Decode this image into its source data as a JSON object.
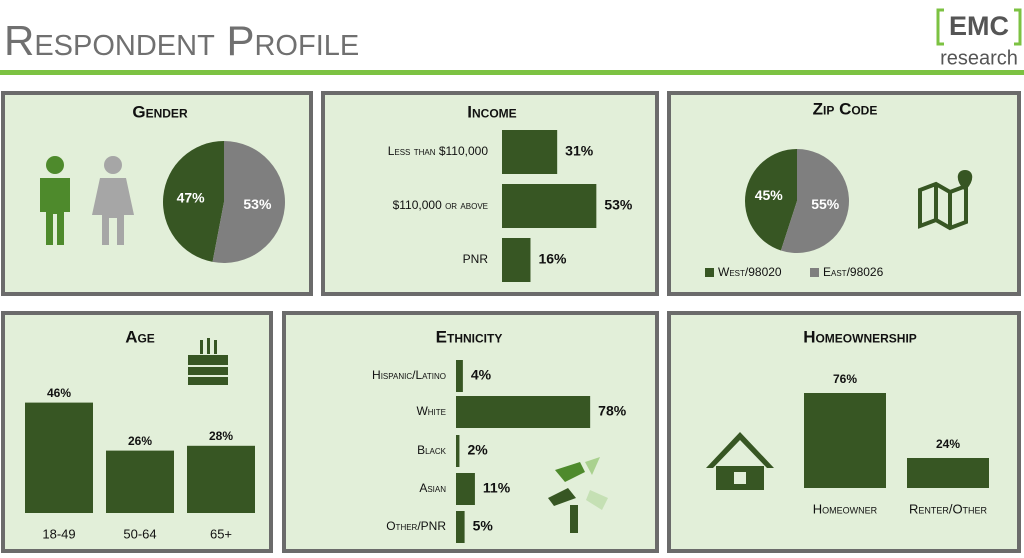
{
  "header": {
    "title": "Respondent Profile",
    "logo_top": "EMC",
    "logo_bottom": "research"
  },
  "chart_data": [
    {
      "type": "pie",
      "title": "Gender",
      "values": [
        47,
        53
      ],
      "value_labels": [
        "47%",
        "53%"
      ],
      "colors": [
        "#375623",
        "#7f7f7f"
      ]
    },
    {
      "type": "hbar",
      "title": "Income",
      "categories": [
        "Less than $110,000",
        "$110,000 or above",
        "PNR"
      ],
      "values": [
        31,
        53,
        16
      ],
      "value_labels": [
        "31%",
        "53%",
        "16%"
      ],
      "color": "#375623"
    },
    {
      "type": "pie",
      "title": "Zip Code",
      "categories": [
        "West/98020",
        "East/98026"
      ],
      "values": [
        45,
        55
      ],
      "value_labels": [
        "45%",
        "55%"
      ],
      "colors": [
        "#375623",
        "#7f7f7f"
      ]
    },
    {
      "type": "bar",
      "title": "Age",
      "categories": [
        "18-49",
        "50-64",
        "65+"
      ],
      "values": [
        46,
        26,
        28
      ],
      "value_labels": [
        "46%",
        "26%",
        "28%"
      ],
      "color": "#375623"
    },
    {
      "type": "hbar",
      "title": "Ethnicity",
      "categories": [
        "Hispanic/Latino",
        "White",
        "Black",
        "Asian",
        "Other/PNR"
      ],
      "values": [
        4,
        78,
        2,
        11,
        5
      ],
      "value_labels": [
        "4%",
        "78%",
        "2%",
        "11%",
        "5%"
      ],
      "color": "#375623"
    },
    {
      "type": "bar",
      "title": "Homeownership",
      "categories": [
        "Homeowner",
        "Renter/Other"
      ],
      "values": [
        76,
        24
      ],
      "value_labels": [
        "76%",
        "24%"
      ],
      "color": "#375623"
    }
  ]
}
